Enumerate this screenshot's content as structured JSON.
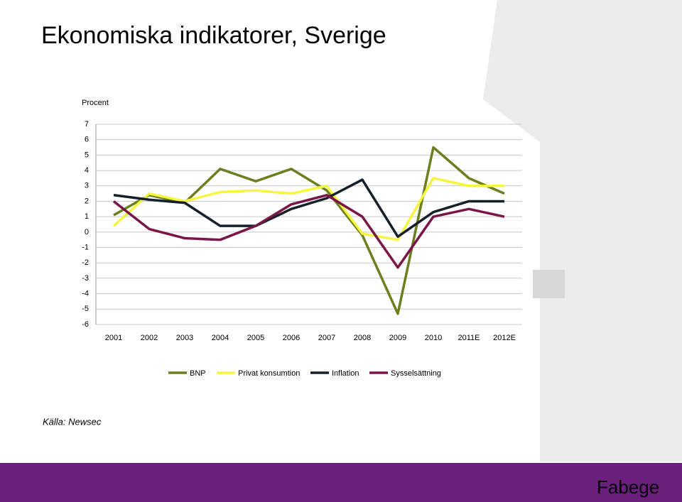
{
  "title": "Ekonomiska indikatorer, Sverige",
  "source": "Källa: Newsec",
  "logo": "Fabege",
  "chart_data": {
    "type": "line",
    "y_label": "Procent",
    "categories": [
      "2001",
      "2002",
      "2003",
      "2004",
      "2005",
      "2006",
      "2007",
      "2008",
      "2009",
      "2010",
      "2011E",
      "2012E"
    ],
    "series": [
      {
        "name": "BNP",
        "color": "#6b7f1e",
        "values": [
          1.1,
          2.4,
          1.9,
          4.1,
          3.3,
          4.1,
          2.7,
          -0.2,
          -5.3,
          5.5,
          3.5,
          2.5
        ]
      },
      {
        "name": "Privat konsumtion",
        "color": "#f5f542",
        "values": [
          0.4,
          2.5,
          2.0,
          2.6,
          2.7,
          2.5,
          3.0,
          -0.1,
          -0.5,
          3.5,
          3.0,
          3.0
        ]
      },
      {
        "name": "Inflation",
        "color": "#15202b",
        "values": [
          2.4,
          2.1,
          1.9,
          0.4,
          0.4,
          1.5,
          2.2,
          3.4,
          -0.3,
          1.3,
          2.0,
          2.0
        ]
      },
      {
        "name": "Sysselsättning",
        "color": "#7a1548",
        "values": [
          2.0,
          0.2,
          -0.4,
          -0.5,
          0.4,
          1.8,
          2.4,
          1.0,
          -2.3,
          1.0,
          1.5,
          1.0
        ]
      }
    ],
    "ylim": [
      -6,
      7
    ],
    "yticks": [
      -6,
      -5,
      -4,
      -3,
      -2,
      -1,
      0,
      1,
      2,
      3,
      4,
      5,
      6,
      7
    ],
    "grid": true,
    "legend": "bottom"
  }
}
